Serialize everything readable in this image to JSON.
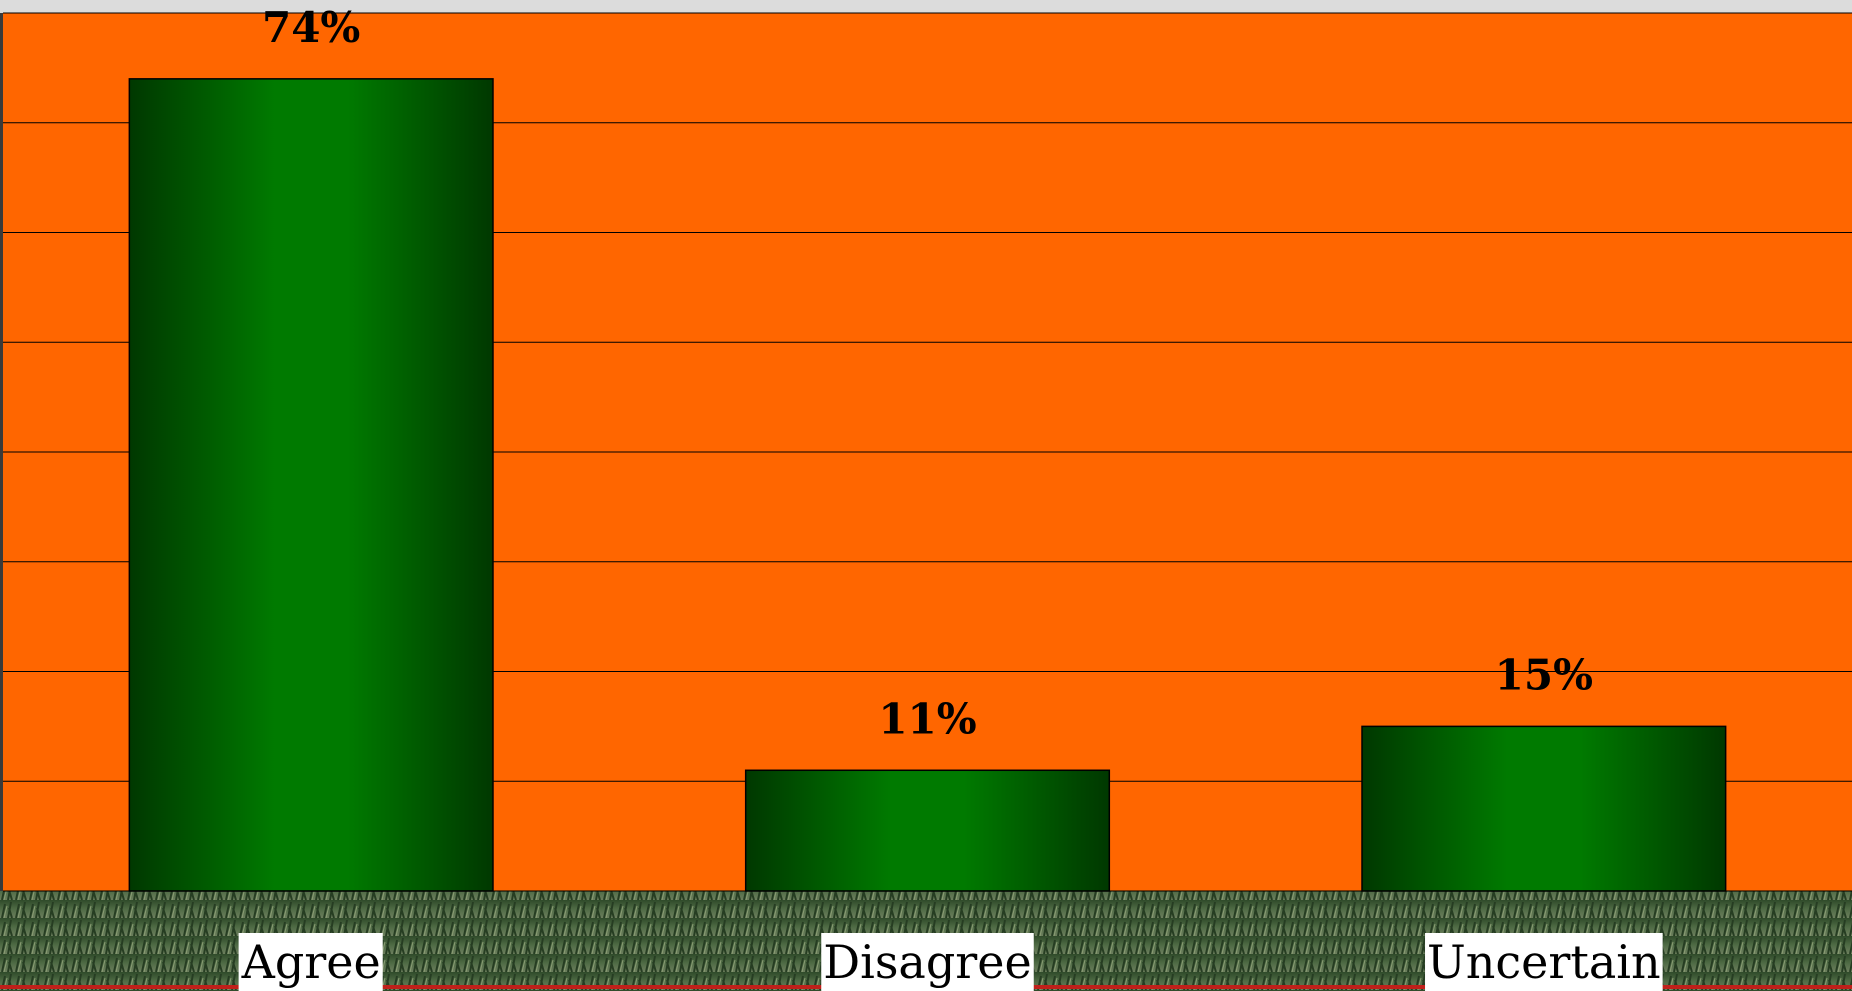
{
  "chart_data": {
    "type": "bar",
    "categories": [
      "Agree",
      "Disagree",
      "Uncertain"
    ],
    "values": [
      74,
      11,
      15
    ],
    "value_labels": [
      "74%",
      "11%",
      "15%"
    ],
    "color": "#007a00",
    "ylim": [
      0,
      80
    ],
    "yticks": [
      0,
      10,
      20,
      30,
      40,
      50,
      60,
      70,
      80
    ],
    "grid": true
  }
}
